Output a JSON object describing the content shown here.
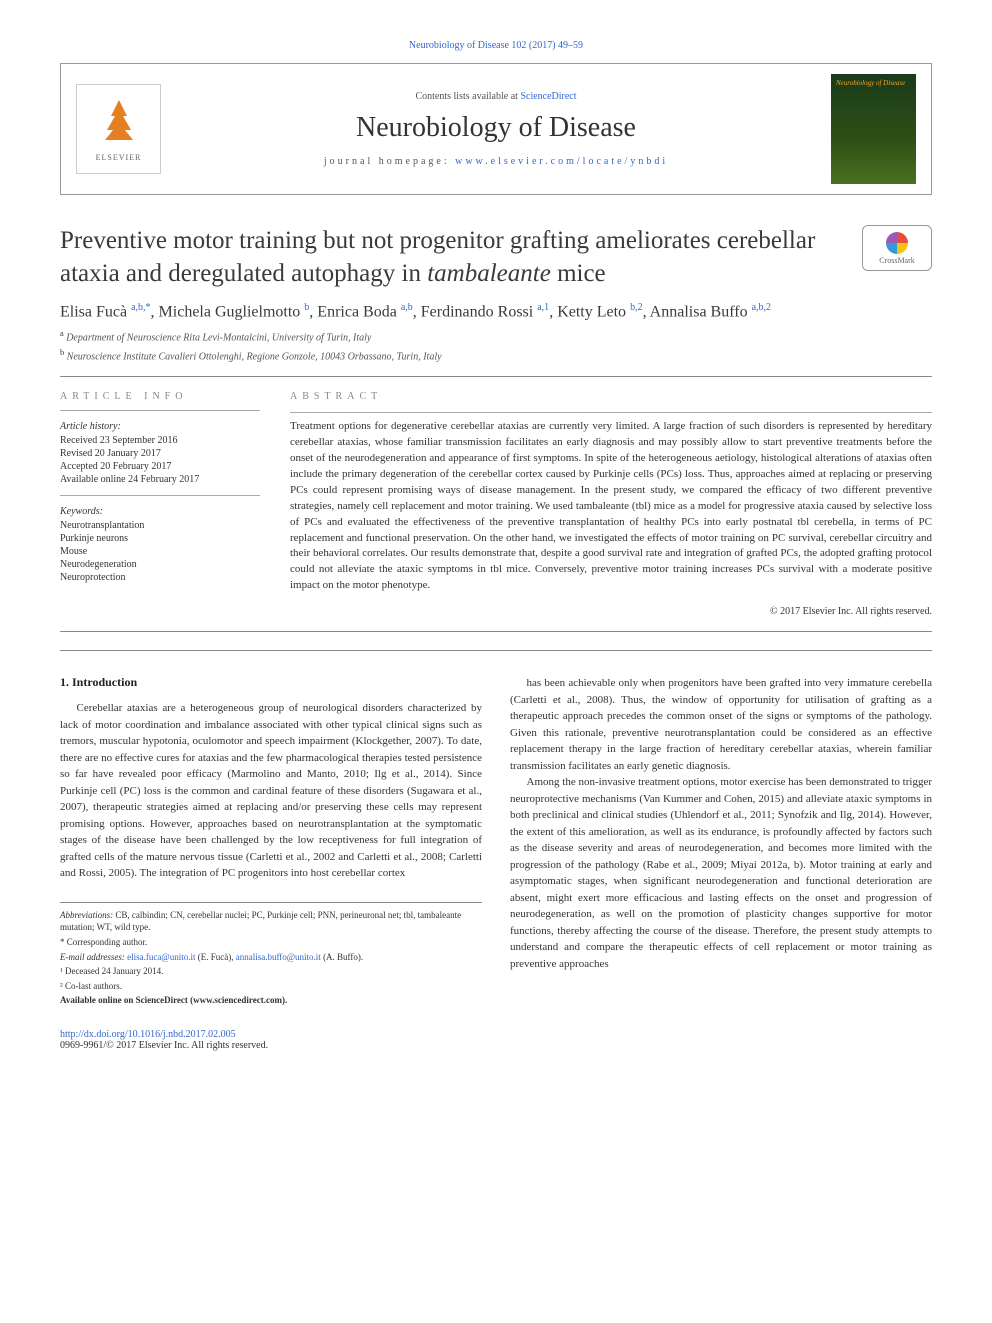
{
  "journal_ref": "Neurobiology of Disease 102 (2017) 49–59",
  "header": {
    "elsevier_label": "ELSEVIER",
    "contents_prefix": "Contents lists available at ",
    "contents_link": "ScienceDirect",
    "journal_name": "Neurobiology of Disease",
    "homepage_prefix": "journal homepage: ",
    "homepage_link": "www.elsevier.com/locate/ynbdi",
    "cover_title": "Neurobiology of Disease"
  },
  "colors": {
    "link": "#3366cc",
    "text": "#333333",
    "rule": "#888888",
    "elsevier_orange": "#e67e22",
    "cover_gradient_top": "#1a3a1a",
    "cover_gradient_mid": "#2d5016",
    "cover_gradient_bot": "#4a7020",
    "background": "#ffffff"
  },
  "typography": {
    "title_fontsize": 25,
    "body_fontsize": 11,
    "authors_fontsize": 16,
    "journal_name_fontsize": 28,
    "footnote_fontsize": 9
  },
  "title_pre": "Preventive motor training but not progenitor grafting ameliorates cerebellar ataxia and deregulated autophagy in ",
  "title_em": "tambaleante",
  "title_post": " mice",
  "crossmark_label": "CrossMark",
  "authors_html_parts": [
    {
      "name": "Elisa Fucà ",
      "sup": "a,b,*"
    },
    {
      "name": ", Michela Guglielmotto ",
      "sup": "b"
    },
    {
      "name": ", Enrica Boda ",
      "sup": "a,b"
    },
    {
      "name": ", Ferdinando Rossi ",
      "sup": "a,1"
    },
    {
      "name": ", Ketty Leto ",
      "sup": "b,2"
    },
    {
      "name": ", Annalisa Buffo ",
      "sup": "a,b,2"
    }
  ],
  "affiliations": [
    {
      "sup": "a",
      "text": " Department of Neuroscience Rita Levi-Montalcini, University of Turin, Italy"
    },
    {
      "sup": "b",
      "text": " Neuroscience Institute Cavalieri Ottolenghi, Regione Gonzole, 10043 Orbassano, Turin, Italy"
    }
  ],
  "article_info": {
    "heading": "article info",
    "history_heading": "Article history:",
    "history": [
      "Received 23 September 2016",
      "Revised 20 January 2017",
      "Accepted 20 February 2017",
      "Available online 24 February 2017"
    ],
    "keywords_heading": "Keywords:",
    "keywords": [
      "Neurotransplantation",
      "Purkinje neurons",
      "Mouse",
      "Neurodegeneration",
      "Neuroprotection"
    ]
  },
  "abstract": {
    "heading": "abstract",
    "text": "Treatment options for degenerative cerebellar ataxias are currently very limited. A large fraction of such disorders is represented by hereditary cerebellar ataxias, whose familiar transmission facilitates an early diagnosis and may possibly allow to start preventive treatments before the onset of the neurodegeneration and appearance of first symptoms. In spite of the heterogeneous aetiology, histological alterations of ataxias often include the primary degeneration of the cerebellar cortex caused by Purkinje cells (PCs) loss. Thus, approaches aimed at replacing or preserving PCs could represent promising ways of disease management. In the present study, we compared the efficacy of two different preventive strategies, namely cell replacement and motor training. We used tambaleante (tbl) mice as a model for progressive ataxia caused by selective loss of PCs and evaluated the effectiveness of the preventive transplantation of healthy PCs into early postnatal tbl cerebella, in terms of PC replacement and functional preservation. On the other hand, we investigated the effects of motor training on PC survival, cerebellar circuitry and their behavioral correlates. Our results demonstrate that, despite a good survival rate and integration of grafted PCs, the adopted grafting protocol could not alleviate the ataxic symptoms in tbl mice. Conversely, preventive motor training increases PCs survival with a moderate positive impact on the motor phenotype.",
    "copyright": "© 2017 Elsevier Inc. All rights reserved."
  },
  "body": {
    "section_heading": "1. Introduction",
    "col1_paras": [
      "Cerebellar ataxias are a heterogeneous group of neurological disorders characterized by lack of motor coordination and imbalance associated with other typical clinical signs such as tremors, muscular hypotonia, oculomotor and speech impairment (Klockgether, 2007). To date, there are no effective cures for ataxias and the few pharmacological therapies tested persistence so far have revealed poor efficacy (Marmolino and Manto, 2010; Ilg et al., 2014). Since Purkinje cell (PC) loss is the common and cardinal feature of these disorders (Sugawara et al., 2007), therapeutic strategies aimed at replacing and/or preserving these cells may represent promising options. However, approaches based on neurotransplantation at the symptomatic stages of the disease have been challenged by the low receptiveness for full integration of grafted cells of the mature nervous tissue (Carletti et al., 2002 and Carletti et al., 2008; Carletti and Rossi, 2005). The integration of PC progenitors into host cerebellar cortex"
    ],
    "col2_paras": [
      "has been achievable only when progenitors have been grafted into very immature cerebella (Carletti et al., 2008). Thus, the window of opportunity for utilisation of grafting as a therapeutic approach precedes the common onset of the signs or symptoms of the pathology. Given this rationale, preventive neurotransplantation could be considered as an effective replacement therapy in the large fraction of hereditary cerebellar ataxias, wherein familiar transmission facilitates an early genetic diagnosis.",
      "Among the non-invasive treatment options, motor exercise has been demonstrated to trigger neuroprotective mechanisms (Van Kummer and Cohen, 2015) and alleviate ataxic symptoms in both preclinical and clinical studies (Uhlendorf et al., 2011; Synofzik and Ilg, 2014). However, the extent of this amelioration, as well as its endurance, is profoundly affected by factors such as the disease severity and areas of neurodegeneration, and becomes more limited with the progression of the pathology (Rabe et al., 2009; Miyai 2012a, b). Motor training at early and asymptomatic stages, when significant neurodegeneration and functional deterioration are absent, might exert more efficacious and lasting effects on the onset and progression of neurodegeneration, as well on the promotion of plasticity changes supportive for motor functions, thereby affecting the course of the disease. Therefore, the present study attempts to understand and compare the therapeutic effects of cell replacement or motor training as preventive approaches"
    ]
  },
  "footnotes": {
    "abbrev_label": "Abbreviations:",
    "abbrev_text": " CB, calbindin; CN, cerebellar nuclei; PC, Purkinje cell; PNN, perineuronal net; tbl, tambaleante mutation; WT, wild type.",
    "corresponding": "* Corresponding author.",
    "email_label": "E-mail addresses: ",
    "email1": "elisa.fuca@unito.it",
    "email1_person": " (E. Fucà), ",
    "email2": "annalisa.buffo@unito.it",
    "email2_person": " (A. Buffo).",
    "note1": "¹ Deceased 24 January 2014.",
    "note2": "² Co-last authors.",
    "sciencedirect": "Available online on ScienceDirect (www.sciencedirect.com)."
  },
  "footer": {
    "doi": "http://dx.doi.org/10.1016/j.nbd.2017.02.005",
    "issn": "0969-9961/© 2017 Elsevier Inc. All rights reserved."
  }
}
